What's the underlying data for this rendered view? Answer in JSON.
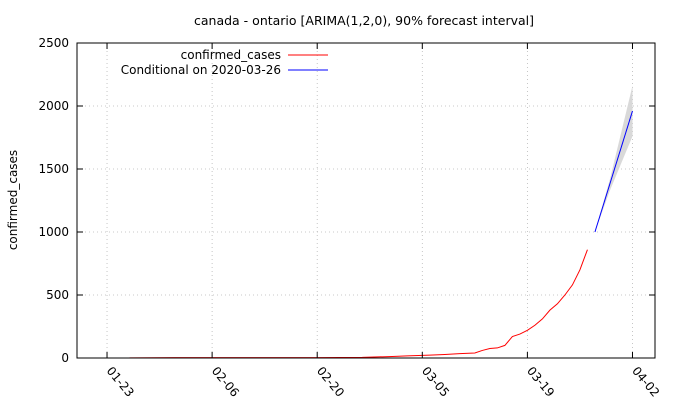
{
  "chart_data": {
    "type": "line",
    "title": "canada - ontario [ARIMA(1,2,0), 90% forecast interval]",
    "xlabel": "",
    "ylabel": "confirmed_cases",
    "x_type": "date",
    "xlim": [
      "2020-01-19",
      "2020-04-05"
    ],
    "ylim": [
      0,
      2500
    ],
    "x_ticks": [
      {
        "date": "2020-01-23",
        "label": "01-23"
      },
      {
        "date": "2020-02-06",
        "label": "02-06"
      },
      {
        "date": "2020-02-20",
        "label": "02-20"
      },
      {
        "date": "2020-03-05",
        "label": "03-05"
      },
      {
        "date": "2020-03-19",
        "label": "03-19"
      },
      {
        "date": "2020-04-02",
        "label": "04-02"
      }
    ],
    "y_ticks": [
      0,
      500,
      1000,
      1500,
      2000,
      2500
    ],
    "grid": true,
    "legend_position": "top-left",
    "series": [
      {
        "name": "confirmed_cases",
        "color": "#ff0000",
        "points": [
          {
            "x": "2020-01-26",
            "y": 1
          },
          {
            "x": "2020-02-01",
            "y": 3
          },
          {
            "x": "2020-02-10",
            "y": 3
          },
          {
            "x": "2020-02-20",
            "y": 3
          },
          {
            "x": "2020-02-26",
            "y": 5
          },
          {
            "x": "2020-03-01",
            "y": 12
          },
          {
            "x": "2020-03-03",
            "y": 17
          },
          {
            "x": "2020-03-06",
            "y": 23
          },
          {
            "x": "2020-03-08",
            "y": 28
          },
          {
            "x": "2020-03-10",
            "y": 35
          },
          {
            "x": "2020-03-12",
            "y": 40
          },
          {
            "x": "2020-03-13",
            "y": 60
          },
          {
            "x": "2020-03-14",
            "y": 75
          },
          {
            "x": "2020-03-15",
            "y": 80
          },
          {
            "x": "2020-03-16",
            "y": 100
          },
          {
            "x": "2020-03-17",
            "y": 170
          },
          {
            "x": "2020-03-18",
            "y": 190
          },
          {
            "x": "2020-03-19",
            "y": 220
          },
          {
            "x": "2020-03-20",
            "y": 260
          },
          {
            "x": "2020-03-21",
            "y": 310
          },
          {
            "x": "2020-03-22",
            "y": 380
          },
          {
            "x": "2020-03-23",
            "y": 430
          },
          {
            "x": "2020-03-24",
            "y": 500
          },
          {
            "x": "2020-03-25",
            "y": 580
          },
          {
            "x": "2020-03-26",
            "y": 700
          },
          {
            "x": "2020-03-27",
            "y": 860
          }
        ]
      },
      {
        "name": "Conditional on 2020-03-26",
        "color": "#0000ff",
        "points": [
          {
            "x": "2020-03-28",
            "y": 1000
          },
          {
            "x": "2020-04-02",
            "y": 1960
          }
        ]
      }
    ],
    "forecast_interval": {
      "level": "90%",
      "color": "#d9d9d9",
      "points": [
        {
          "x": "2020-03-28",
          "low": 1000,
          "high": 1000
        },
        {
          "x": "2020-03-30",
          "low": 1330,
          "high": 1420
        },
        {
          "x": "2020-04-02",
          "low": 1760,
          "high": 2160
        }
      ]
    }
  }
}
